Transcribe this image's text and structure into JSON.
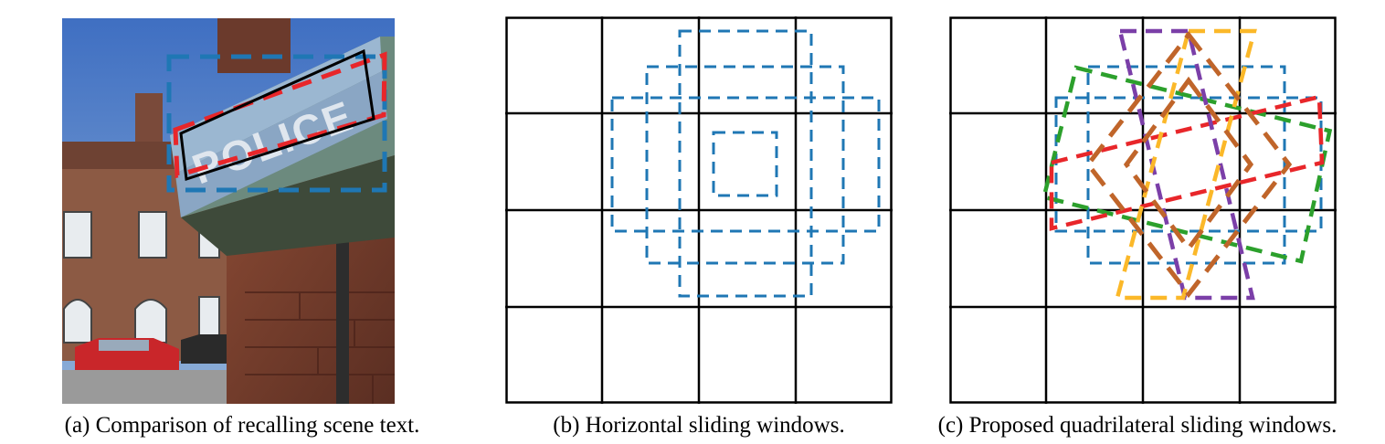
{
  "figure": {
    "captions": {
      "a": "(a) Comparison of recalling scene text.",
      "b": "(b) Horizontal sliding windows.",
      "c": "(c) Proposed quadrilateral sliding windows."
    },
    "photo_sign_text": "POLICE",
    "colors": {
      "grid_line": "#000000",
      "horizontal_window": "#1f77b4",
      "red_window": "#e8262a",
      "green_window": "#2ca02c",
      "orange_window": "#fbb829",
      "purple_window": "#7b3fa8",
      "brown_window": "#c0652a"
    }
  }
}
